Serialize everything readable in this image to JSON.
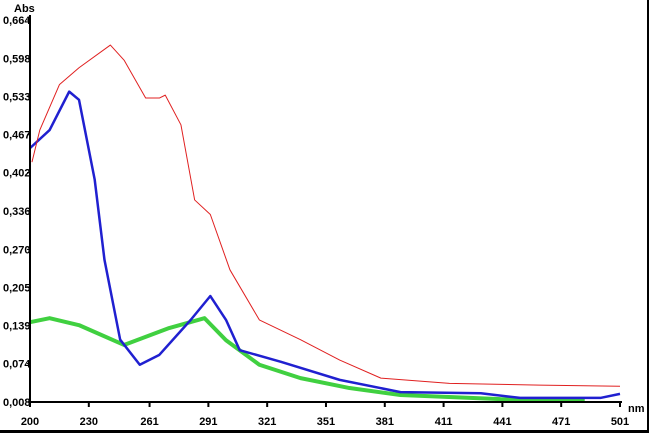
{
  "chart_data": {
    "type": "line",
    "title": "",
    "xlabel": "nm",
    "ylabel": "Abs",
    "xlim": [
      200,
      501
    ],
    "ylim": [
      0.008,
      0.664
    ],
    "x_ticks": [
      "200",
      "230",
      "261",
      "291",
      "321",
      "351",
      "381",
      "411",
      "441",
      "471",
      "501"
    ],
    "x_tick_values": [
      200,
      230,
      261,
      291,
      321,
      351,
      381,
      411,
      441,
      471,
      501
    ],
    "y_ticks": [
      "0,008",
      "0,074",
      "0,139",
      "0,205",
      "0,270",
      "0,336",
      "0,402",
      "0,467",
      "0,533",
      "0,598",
      "0,664"
    ],
    "y_tick_values": [
      0.008,
      0.074,
      0.139,
      0.205,
      0.27,
      0.336,
      0.402,
      0.467,
      0.533,
      0.598,
      0.664
    ],
    "grid": false,
    "series": [
      {
        "name": "red",
        "color": "#e02020",
        "width": 1,
        "x": [
          201,
          205,
          215,
          225,
          241,
          248,
          259,
          266,
          269,
          277,
          284,
          292,
          302,
          317,
          338,
          358,
          379,
          414,
          460,
          501
        ],
        "y": [
          0.42,
          0.475,
          0.553,
          0.582,
          0.621,
          0.595,
          0.53,
          0.53,
          0.535,
          0.484,
          0.355,
          0.33,
          0.235,
          0.149,
          0.115,
          0.08,
          0.049,
          0.04,
          0.037,
          0.035
        ]
      },
      {
        "name": "blue",
        "color": "#2020d0",
        "width": 2.5,
        "x": [
          200,
          210,
          220,
          225,
          233,
          238,
          246,
          256,
          266,
          282,
          292,
          300,
          307,
          328,
          358,
          389,
          430,
          450,
          491,
          501
        ],
        "y": [
          0.444,
          0.475,
          0.541,
          0.527,
          0.39,
          0.252,
          0.115,
          0.072,
          0.089,
          0.149,
          0.19,
          0.149,
          0.097,
          0.077,
          0.046,
          0.025,
          0.023,
          0.015,
          0.015,
          0.022
        ]
      },
      {
        "name": "green",
        "color": "#40d040",
        "width": 4,
        "x": [
          200,
          210,
          225,
          248,
          271,
          289,
          300,
          317,
          338,
          363,
          389,
          440,
          483
        ],
        "y": [
          0.145,
          0.152,
          0.14,
          0.106,
          0.135,
          0.152,
          0.114,
          0.072,
          0.049,
          0.032,
          0.02,
          0.013,
          0.011
        ]
      }
    ]
  }
}
